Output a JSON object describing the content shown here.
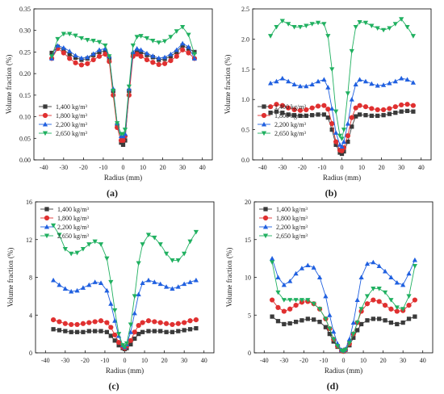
{
  "colors": {
    "s1400": "#3a3a3a",
    "s1800": "#e03030",
    "s2200": "#2060e0",
    "s2650": "#20b060"
  },
  "chart_data": [
    {
      "type": "line",
      "label": "(a)",
      "xlabel": "Radius (mm)",
      "ylabel": "Volume fraction (%)",
      "xlim": [
        -45,
        45
      ],
      "ylim": [
        0,
        0.35
      ],
      "xticks": [
        -40,
        -30,
        -20,
        -10,
        0,
        10,
        20,
        30,
        40
      ],
      "yticks": [
        0.0,
        0.05,
        0.1,
        0.15,
        0.2,
        0.25,
        0.3,
        0.35
      ],
      "ytick_labels": [
        "0.00",
        "0.05",
        "0.10",
        "0.15",
        "0.20",
        "0.25",
        "0.30",
        "0.35"
      ],
      "legend_position": "lower-left",
      "x": [
        -36,
        -33,
        -30,
        -27,
        -24,
        -21,
        -18,
        -15,
        -12,
        -9,
        -7,
        -5,
        -3,
        -1,
        0,
        1,
        3,
        5,
        7,
        9,
        12,
        15,
        18,
        21,
        24,
        27,
        30,
        33,
        36
      ],
      "series": [
        {
          "name": "1,400 kg/m³",
          "marker": "square",
          "color_key": "s1400",
          "values": [
            0.248,
            0.262,
            0.255,
            0.245,
            0.237,
            0.232,
            0.235,
            0.243,
            0.25,
            0.252,
            0.235,
            0.16,
            0.08,
            0.04,
            0.035,
            0.045,
            0.16,
            0.245,
            0.252,
            0.25,
            0.243,
            0.238,
            0.232,
            0.234,
            0.24,
            0.25,
            0.265,
            0.258,
            0.25
          ]
        },
        {
          "name": "1,800 kg/m³",
          "marker": "circle",
          "color_key": "s1800",
          "values": [
            0.235,
            0.258,
            0.248,
            0.235,
            0.225,
            0.22,
            0.223,
            0.232,
            0.24,
            0.245,
            0.228,
            0.15,
            0.075,
            0.045,
            0.045,
            0.055,
            0.15,
            0.24,
            0.245,
            0.24,
            0.232,
            0.226,
            0.221,
            0.223,
            0.23,
            0.24,
            0.255,
            0.248,
            0.235
          ]
        },
        {
          "name": "2,200 kg/m³",
          "marker": "triangle-up",
          "color_key": "s2200",
          "values": [
            0.235,
            0.265,
            0.26,
            0.252,
            0.242,
            0.236,
            0.238,
            0.246,
            0.255,
            0.258,
            0.24,
            0.165,
            0.085,
            0.055,
            0.055,
            0.06,
            0.165,
            0.25,
            0.258,
            0.255,
            0.247,
            0.241,
            0.236,
            0.238,
            0.245,
            0.255,
            0.27,
            0.262,
            0.235
          ]
        },
        {
          "name": "2,650 kg/m³",
          "marker": "triangle-down",
          "color_key": "s2650",
          "values": [
            0.24,
            0.28,
            0.292,
            0.292,
            0.288,
            0.282,
            0.278,
            0.276,
            0.273,
            0.265,
            0.24,
            0.16,
            0.085,
            0.06,
            0.06,
            0.07,
            0.17,
            0.265,
            0.285,
            0.287,
            0.282,
            0.276,
            0.272,
            0.275,
            0.285,
            0.298,
            0.308,
            0.29,
            0.245
          ]
        }
      ]
    },
    {
      "type": "line",
      "label": "(b)",
      "xlabel": "Radius (mm)",
      "ylabel": "Volume fraction (%)",
      "xlim": [
        -45,
        45
      ],
      "ylim": [
        0,
        2.5
      ],
      "xticks": [
        -40,
        -30,
        -20,
        -10,
        0,
        10,
        20,
        30,
        40
      ],
      "yticks": [
        0.0,
        0.5,
        1.0,
        1.5,
        2.0,
        2.5
      ],
      "ytick_labels": [
        "0.0",
        "0.5",
        "1.0",
        "1.5",
        "2.0",
        "2.5"
      ],
      "legend_position": "lower-left",
      "x": [
        -36,
        -33,
        -30,
        -27,
        -24,
        -21,
        -18,
        -15,
        -12,
        -9,
        -7,
        -5,
        -3,
        -1,
        0,
        1,
        3,
        5,
        7,
        9,
        12,
        15,
        18,
        21,
        24,
        27,
        30,
        33,
        36
      ],
      "series": [
        {
          "name": "1,400 kg/m³",
          "marker": "square",
          "color_key": "s1400",
          "values": [
            0.78,
            0.8,
            0.78,
            0.75,
            0.74,
            0.73,
            0.73,
            0.74,
            0.75,
            0.75,
            0.7,
            0.5,
            0.25,
            0.12,
            0.1,
            0.14,
            0.3,
            0.55,
            0.72,
            0.75,
            0.74,
            0.73,
            0.73,
            0.74,
            0.76,
            0.78,
            0.8,
            0.81,
            0.8
          ]
        },
        {
          "name": "1,800 kg/m³",
          "marker": "circle",
          "color_key": "s1800",
          "values": [
            0.88,
            0.92,
            0.9,
            0.86,
            0.83,
            0.82,
            0.83,
            0.86,
            0.89,
            0.9,
            0.84,
            0.6,
            0.3,
            0.16,
            0.15,
            0.2,
            0.4,
            0.7,
            0.86,
            0.9,
            0.88,
            0.85,
            0.83,
            0.83,
            0.85,
            0.88,
            0.91,
            0.92,
            0.9
          ]
        },
        {
          "name": "2,200 kg/m³",
          "marker": "triangle-up",
          "color_key": "s2200",
          "values": [
            1.27,
            1.3,
            1.35,
            1.3,
            1.25,
            1.22,
            1.22,
            1.25,
            1.3,
            1.33,
            1.2,
            0.85,
            0.45,
            0.25,
            0.22,
            0.3,
            0.6,
            1.0,
            1.25,
            1.33,
            1.3,
            1.26,
            1.23,
            1.24,
            1.27,
            1.3,
            1.35,
            1.33,
            1.28
          ]
        },
        {
          "name": "2,650 kg/m³",
          "marker": "triangle-down",
          "color_key": "s2650",
          "values": [
            2.05,
            2.2,
            2.3,
            2.25,
            2.2,
            2.2,
            2.22,
            2.25,
            2.27,
            2.25,
            2.05,
            1.5,
            0.8,
            0.4,
            0.35,
            0.5,
            1.1,
            1.8,
            2.2,
            2.28,
            2.27,
            2.22,
            2.18,
            2.15,
            2.18,
            2.25,
            2.33,
            2.2,
            2.05
          ]
        }
      ]
    },
    {
      "type": "line",
      "label": "(c)",
      "xlabel": "Radius (mm)",
      "ylabel": "Volume fraction (%)",
      "xlim": [
        -45,
        45
      ],
      "ylim": [
        0,
        16
      ],
      "xticks": [
        -40,
        -30,
        -20,
        -10,
        0,
        10,
        20,
        30,
        40
      ],
      "yticks": [
        0,
        4,
        8,
        12,
        16
      ],
      "ytick_labels": [
        "0",
        "4",
        "8",
        "12",
        "16"
      ],
      "legend_position": "top-left",
      "x": [
        -36,
        -33,
        -30,
        -27,
        -24,
        -21,
        -18,
        -15,
        -12,
        -9,
        -7,
        -5,
        -3,
        -1,
        0,
        1,
        3,
        5,
        7,
        9,
        12,
        15,
        18,
        21,
        24,
        27,
        30,
        33,
        36
      ],
      "series": [
        {
          "name": "1,400 kg/m³",
          "marker": "square",
          "color_key": "s1400",
          "values": [
            2.5,
            2.4,
            2.3,
            2.2,
            2.2,
            2.2,
            2.3,
            2.3,
            2.3,
            2.2,
            1.8,
            1.3,
            0.8,
            0.5,
            0.4,
            0.5,
            0.9,
            1.5,
            2.0,
            2.2,
            2.3,
            2.3,
            2.3,
            2.2,
            2.2,
            2.3,
            2.4,
            2.5,
            2.6
          ]
        },
        {
          "name": "1,800 kg/m³",
          "marker": "circle",
          "color_key": "s1800",
          "values": [
            3.5,
            3.3,
            3.1,
            3.0,
            3.0,
            3.1,
            3.2,
            3.3,
            3.4,
            3.2,
            2.7,
            1.9,
            1.1,
            0.6,
            0.5,
            0.7,
            1.3,
            2.2,
            2.9,
            3.2,
            3.4,
            3.3,
            3.2,
            3.1,
            3.0,
            3.1,
            3.2,
            3.4,
            3.5
          ]
        },
        {
          "name": "2,200 kg/m³",
          "marker": "triangle-up",
          "color_key": "s2200",
          "values": [
            7.7,
            7.2,
            6.8,
            6.5,
            6.6,
            6.9,
            7.2,
            7.5,
            7.4,
            6.6,
            5.2,
            3.4,
            1.8,
            0.8,
            0.6,
            0.9,
            2.2,
            4.2,
            6.2,
            7.4,
            7.7,
            7.5,
            7.3,
            7.0,
            6.8,
            7.0,
            7.3,
            7.5,
            7.7
          ]
        },
        {
          "name": "2,650 kg/m³",
          "marker": "triangle-down",
          "color_key": "s2650",
          "values": [
            13.5,
            12.5,
            11.0,
            10.5,
            10.6,
            11.0,
            11.5,
            11.8,
            11.5,
            10.0,
            7.5,
            4.5,
            2.0,
            0.8,
            0.6,
            1.0,
            3.0,
            6.0,
            9.5,
            11.5,
            12.5,
            12.2,
            11.5,
            10.5,
            9.8,
            9.8,
            10.5,
            11.8,
            12.8
          ]
        }
      ]
    },
    {
      "type": "line",
      "label": "(d)",
      "xlabel": "Radius (mm)",
      "ylabel": "Volume fraction (%)",
      "xlim": [
        -45,
        45
      ],
      "ylim": [
        0,
        20
      ],
      "xticks": [
        -40,
        -30,
        -20,
        -10,
        0,
        10,
        20,
        30,
        40
      ],
      "yticks": [
        0,
        5,
        10,
        15,
        20
      ],
      "ytick_labels": [
        "0",
        "5",
        "10",
        "15",
        "20"
      ],
      "legend_position": "top-left",
      "x": [
        -36,
        -33,
        -30,
        -27,
        -24,
        -21,
        -18,
        -15,
        -12,
        -9,
        -7,
        -5,
        -3,
        -1,
        0,
        1,
        3,
        5,
        7,
        9,
        12,
        15,
        18,
        21,
        24,
        27,
        30,
        33,
        36
      ],
      "series": [
        {
          "name": "1,400 kg/m³",
          "marker": "square",
          "color_key": "s1400",
          "values": [
            4.8,
            4.2,
            3.8,
            3.9,
            4.1,
            4.3,
            4.5,
            4.4,
            4.1,
            3.4,
            2.5,
            1.5,
            0.8,
            0.3,
            0.2,
            0.4,
            1.0,
            2.0,
            3.0,
            3.8,
            4.3,
            4.5,
            4.5,
            4.3,
            4.0,
            3.8,
            4.0,
            4.5,
            4.8
          ]
        },
        {
          "name": "1,800 kg/m³",
          "marker": "circle",
          "color_key": "s1800",
          "values": [
            7.0,
            6.0,
            5.5,
            5.8,
            6.3,
            6.7,
            6.8,
            6.5,
            5.8,
            4.5,
            3.2,
            1.8,
            0.9,
            0.3,
            0.2,
            0.4,
            1.2,
            2.5,
            4.0,
            5.5,
            6.5,
            7.0,
            6.8,
            6.3,
            5.8,
            5.5,
            5.6,
            6.3,
            7.0
          ]
        },
        {
          "name": "2,200 kg/m³",
          "marker": "triangle-up",
          "color_key": "s2200",
          "values": [
            12.5,
            10.0,
            9.0,
            9.5,
            10.5,
            11.2,
            11.6,
            11.3,
            10.0,
            7.5,
            5.0,
            2.8,
            1.2,
            0.4,
            0.3,
            0.5,
            1.8,
            4.0,
            7.0,
            10.0,
            11.8,
            12.0,
            11.5,
            10.8,
            10.0,
            9.3,
            9.0,
            10.5,
            12.3
          ]
        },
        {
          "name": "2,650 kg/m³",
          "marker": "triangle-down",
          "color_key": "s2650",
          "values": [
            12.0,
            8.0,
            7.0,
            7.0,
            7.0,
            7.0,
            7.0,
            6.5,
            5.8,
            4.5,
            3.2,
            1.8,
            0.9,
            0.3,
            0.2,
            0.4,
            1.3,
            2.5,
            4.0,
            5.8,
            7.5,
            8.5,
            8.5,
            8.0,
            7.0,
            6.0,
            5.8,
            7.5,
            11.5
          ]
        }
      ]
    }
  ]
}
